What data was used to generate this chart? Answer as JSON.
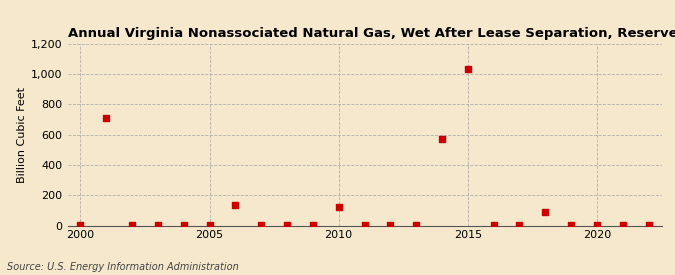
{
  "title": "Annual Virginia Nonassociated Natural Gas, Wet After Lease Separation, Reserves Divestitures",
  "ylabel": "Billion Cubic Feet",
  "source": "Source: U.S. Energy Information Administration",
  "background_color": "#f5e8cc",
  "marker_color": "#cc0000",
  "xlim": [
    1999.5,
    2022.5
  ],
  "ylim": [
    0,
    1200
  ],
  "yticks": [
    0,
    200,
    400,
    600,
    800,
    1000,
    1200
  ],
  "ytick_labels": [
    "0",
    "200",
    "400",
    "600",
    "800",
    "1,000",
    "1,200"
  ],
  "xticks": [
    2000,
    2005,
    2010,
    2015,
    2020
  ],
  "data": [
    [
      2000,
      5
    ],
    [
      2001,
      710
    ],
    [
      2002,
      3
    ],
    [
      2003,
      2
    ],
    [
      2004,
      3
    ],
    [
      2005,
      2
    ],
    [
      2006,
      135
    ],
    [
      2007,
      5
    ],
    [
      2008,
      4
    ],
    [
      2009,
      3
    ],
    [
      2010,
      120
    ],
    [
      2011,
      4
    ],
    [
      2012,
      4
    ],
    [
      2013,
      4
    ],
    [
      2014,
      570
    ],
    [
      2015,
      1035
    ],
    [
      2016,
      4
    ],
    [
      2017,
      4
    ],
    [
      2018,
      90
    ],
    [
      2019,
      5
    ],
    [
      2020,
      3
    ],
    [
      2021,
      3
    ],
    [
      2022,
      3
    ]
  ]
}
